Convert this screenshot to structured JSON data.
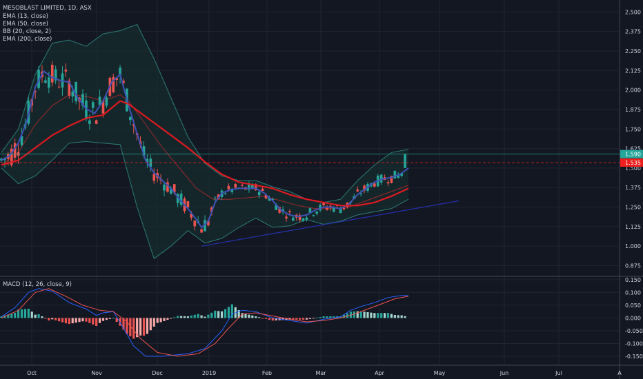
{
  "header": {
    "title": "MESOBLAST LIMITED, 1D, ASX"
  },
  "colors": {
    "background": "#131722",
    "grid": "#1f2430",
    "up": "#26a69a",
    "down": "#ef5350",
    "ema13": "#3f51b5",
    "ema50": "#9c2a2a",
    "ema200": "#2e6b64",
    "bb": "#2b7d74",
    "bbFill": "#172d2f",
    "trend": "#2430a8",
    "ema200Thick": "#e0191f",
    "macd": "#2962ff",
    "signal": "#ef5350",
    "priceGreen": "#26a69a",
    "priceRed": "#ef1f1f"
  },
  "legend": [
    "EMA (13, close)",
    "EMA (50, close)",
    "BB (20, close, 2)",
    "EMA (200, close)"
  ],
  "macd_legend": "MACD (12, 26, close, 9)",
  "price_labels": {
    "last": "1.590",
    "ref": "1.535"
  },
  "x_axis_labels": [
    "Oct",
    "Nov",
    "Dec",
    "2019",
    "Feb",
    "Mar",
    "Apr",
    "May",
    "Jun",
    "Jul",
    "A"
  ],
  "chart_data": [
    {
      "type": "candlestick",
      "title": "MESOBLAST LIMITED, 1D, ASX",
      "ylim": [
        0.82,
        2.55
      ],
      "y_ticks": [
        "2.500",
        "2.375",
        "2.250",
        "2.125",
        "2.000",
        "1.875",
        "1.750",
        "1.625",
        "1.500",
        "1.375",
        "1.250",
        "1.125",
        "1.000",
        "0.875"
      ],
      "y_tick_values": [
        2.5,
        2.375,
        2.25,
        2.125,
        2.0,
        1.875,
        1.75,
        1.625,
        1.5,
        1.375,
        1.25,
        1.125,
        1.0,
        0.875
      ],
      "last_price": 1.59,
      "reference_price": 1.535,
      "series": [
        {
          "name": "EMA (13, close)",
          "values": [
            [
              0,
              1.55
            ],
            [
              5,
              1.58
            ],
            [
              10,
              1.66
            ],
            [
              15,
              1.8
            ],
            [
              20,
              2.02
            ],
            [
              25,
              2.12
            ],
            [
              30,
              2.08
            ],
            [
              35,
              2.06
            ],
            [
              40,
              2.05
            ],
            [
              45,
              1.95
            ],
            [
              50,
              1.88
            ],
            [
              55,
              1.85
            ],
            [
              60,
              1.93
            ],
            [
              65,
              2.05
            ],
            [
              70,
              2.1
            ],
            [
              75,
              1.9
            ],
            [
              80,
              1.72
            ],
            [
              85,
              1.55
            ],
            [
              90,
              1.47
            ],
            [
              95,
              1.42
            ],
            [
              100,
              1.37
            ],
            [
              105,
              1.3
            ],
            [
              110,
              1.24
            ],
            [
              115,
              1.17
            ],
            [
              118,
              1.12
            ],
            [
              122,
              1.16
            ],
            [
              126,
              1.28
            ],
            [
              130,
              1.34
            ],
            [
              135,
              1.36
            ],
            [
              140,
              1.37
            ],
            [
              145,
              1.37
            ],
            [
              150,
              1.37
            ],
            [
              155,
              1.34
            ],
            [
              160,
              1.29
            ],
            [
              165,
              1.23
            ],
            [
              170,
              1.2
            ],
            [
              175,
              1.19
            ],
            [
              180,
              1.2
            ],
            [
              185,
              1.23
            ],
            [
              190,
              1.25
            ],
            [
              195,
              1.25
            ],
            [
              200,
              1.24
            ],
            [
              205,
              1.27
            ],
            [
              210,
              1.33
            ],
            [
              215,
              1.37
            ],
            [
              220,
              1.41
            ],
            [
              225,
              1.43
            ],
            [
              230,
              1.44
            ],
            [
              235,
              1.46
            ],
            [
              240,
              1.5
            ]
          ]
        },
        {
          "name": "EMA (50, close)",
          "values": [
            [
              0,
              1.52
            ],
            [
              10,
              1.6
            ],
            [
              20,
              1.78
            ],
            [
              30,
              1.9
            ],
            [
              40,
              1.97
            ],
            [
              50,
              1.96
            ],
            [
              60,
              1.93
            ],
            [
              70,
              1.97
            ],
            [
              75,
              1.93
            ],
            [
              85,
              1.78
            ],
            [
              95,
              1.63
            ],
            [
              105,
              1.5
            ],
            [
              115,
              1.37
            ],
            [
              125,
              1.3
            ],
            [
              135,
              1.3
            ],
            [
              145,
              1.31
            ],
            [
              155,
              1.32
            ],
            [
              165,
              1.29
            ],
            [
              175,
              1.26
            ],
            [
              185,
              1.24
            ],
            [
              195,
              1.24
            ],
            [
              205,
              1.25
            ],
            [
              215,
              1.29
            ],
            [
              225,
              1.33
            ],
            [
              235,
              1.37
            ],
            [
              240,
              1.39
            ]
          ]
        },
        {
          "name": "EMA (200, close)",
          "values": [
            [
              0,
              1.52
            ],
            [
              10,
              1.55
            ],
            [
              20,
              1.63
            ],
            [
              30,
              1.71
            ],
            [
              40,
              1.77
            ],
            [
              50,
              1.82
            ],
            [
              60,
              1.84
            ],
            [
              70,
              1.93
            ],
            [
              75,
              1.91
            ],
            [
              80,
              1.87
            ],
            [
              90,
              1.79
            ],
            [
              100,
              1.71
            ],
            [
              110,
              1.63
            ],
            [
              120,
              1.54
            ],
            [
              130,
              1.46
            ],
            [
              140,
              1.41
            ],
            [
              150,
              1.39
            ],
            [
              160,
              1.37
            ],
            [
              170,
              1.33
            ],
            [
              180,
              1.3
            ],
            [
              190,
              1.28
            ],
            [
              200,
              1.26
            ],
            [
              210,
              1.26
            ],
            [
              220,
              1.28
            ],
            [
              230,
              1.32
            ],
            [
              240,
              1.37
            ]
          ]
        },
        {
          "name": "BB (20, close, 2)",
          "values": [
            [
              0,
              1.6
            ],
            [
              10,
              1.75
            ],
            [
              20,
              2.1
            ],
            [
              30,
              2.3
            ],
            [
              40,
              2.32
            ],
            [
              50,
              2.28
            ],
            [
              60,
              2.36
            ],
            [
              70,
              2.38
            ],
            [
              75,
              2.4
            ],
            [
              80,
              2.42
            ],
            [
              90,
              2.2
            ],
            [
              100,
              1.95
            ],
            [
              110,
              1.7
            ],
            [
              120,
              1.53
            ],
            [
              130,
              1.45
            ],
            [
              140,
              1.42
            ],
            [
              150,
              1.42
            ],
            [
              160,
              1.38
            ],
            [
              170,
              1.35
            ],
            [
              180,
              1.3
            ],
            [
              190,
              1.28
            ],
            [
              200,
              1.3
            ],
            [
              210,
              1.42
            ],
            [
              220,
              1.52
            ],
            [
              230,
              1.6
            ],
            [
              240,
              1.62
            ]
          ]
        },
        {
          "name": "BB (20, close, 2)",
          "values": [
            [
              0,
              1.5
            ],
            [
              10,
              1.4
            ],
            [
              20,
              1.45
            ],
            [
              30,
              1.55
            ],
            [
              40,
              1.66
            ],
            [
              50,
              1.67
            ],
            [
              60,
              1.66
            ],
            [
              70,
              1.65
            ],
            [
              80,
              1.25
            ],
            [
              90,
              0.92
            ],
            [
              100,
              1.0
            ],
            [
              110,
              1.1
            ],
            [
              120,
              1.02
            ],
            [
              130,
              1.05
            ],
            [
              140,
              1.12
            ],
            [
              150,
              1.18
            ],
            [
              160,
              1.12
            ],
            [
              170,
              1.13
            ],
            [
              180,
              1.17
            ],
            [
              190,
              1.14
            ],
            [
              200,
              1.16
            ],
            [
              210,
              1.2
            ],
            [
              220,
              1.22
            ],
            [
              230,
              1.24
            ],
            [
              240,
              1.3
            ]
          ]
        }
      ]
    },
    {
      "type": "histogram",
      "title": "MACD (12, 26, close, 9)",
      "ylim": [
        -0.185,
        0.155
      ],
      "y_ticks": [
        "0.150",
        "0.100",
        "0.050",
        "0.000",
        "-0.050",
        "-0.100",
        "-0.150"
      ],
      "y_tick_values": [
        0.15,
        0.1,
        0.05,
        0.0,
        -0.05,
        -0.1,
        -0.15
      ],
      "series": [
        {
          "name": "MACD",
          "values": [
            [
              0,
              0.005
            ],
            [
              8,
              0.04
            ],
            [
              16,
              0.1
            ],
            [
              22,
              0.115
            ],
            [
              30,
              0.105
            ],
            [
              40,
              0.06
            ],
            [
              50,
              0.035
            ],
            [
              56,
              0.01
            ],
            [
              60,
              0.02
            ],
            [
              66,
              0.025
            ],
            [
              72,
              -0.04
            ],
            [
              78,
              -0.11
            ],
            [
              85,
              -0.15
            ],
            [
              95,
              -0.15
            ],
            [
              110,
              -0.14
            ],
            [
              120,
              -0.12
            ],
            [
              130,
              -0.05
            ],
            [
              136,
              0.015
            ],
            [
              142,
              0.03
            ],
            [
              150,
              0.025
            ],
            [
              160,
              0.0
            ],
            [
              170,
              -0.01
            ],
            [
              180,
              -0.02
            ],
            [
              190,
              -0.005
            ],
            [
              200,
              0.005
            ],
            [
              206,
              0.03
            ],
            [
              212,
              0.045
            ],
            [
              220,
              0.06
            ],
            [
              228,
              0.08
            ],
            [
              236,
              0.088
            ],
            [
              240,
              0.088
            ]
          ]
        },
        {
          "name": "Signal",
          "values": [
            [
              0,
              0.0
            ],
            [
              10,
              0.03
            ],
            [
              20,
              0.1
            ],
            [
              28,
              0.115
            ],
            [
              38,
              0.085
            ],
            [
              48,
              0.05
            ],
            [
              58,
              0.03
            ],
            [
              66,
              0.025
            ],
            [
              74,
              -0.015
            ],
            [
              82,
              -0.08
            ],
            [
              92,
              -0.135
            ],
            [
              104,
              -0.15
            ],
            [
              116,
              -0.14
            ],
            [
              126,
              -0.1
            ],
            [
              134,
              -0.04
            ],
            [
              142,
              0.015
            ],
            [
              150,
              0.02
            ],
            [
              160,
              0.008
            ],
            [
              170,
              -0.005
            ],
            [
              180,
              -0.015
            ],
            [
              190,
              -0.01
            ],
            [
              200,
              0.0
            ],
            [
              208,
              0.015
            ],
            [
              216,
              0.035
            ],
            [
              224,
              0.055
            ],
            [
              232,
              0.075
            ],
            [
              240,
              0.085
            ]
          ]
        }
      ]
    }
  ]
}
